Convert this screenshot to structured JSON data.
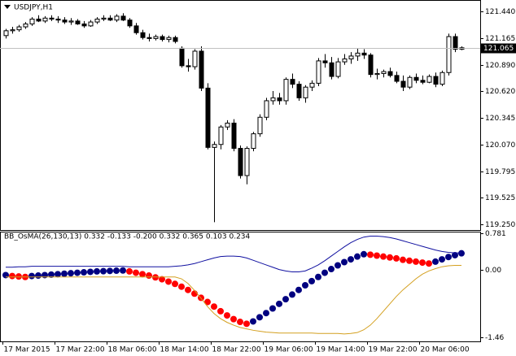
{
  "chart_data": [
    {
      "type": "candlestick",
      "title": "USDJPY,H1",
      "up_color": "#ffffff",
      "down_color": "#000000",
      "edge_color": "#000000",
      "xlim": [
        -0.875,
        72.875
      ],
      "ylim": [
        119.19,
        121.548
      ],
      "yticks": [
        {
          "value": 121.44,
          "label": "121.440"
        },
        121.165,
        {
          "value": 120.89,
          "label": "120.890"
        },
        {
          "value": 120.62,
          "label": "120.620"
        },
        120.345,
        {
          "value": 120.07,
          "label": "120.070"
        },
        119.795,
        119.525,
        {
          "value": 119.25,
          "label": "119.250"
        }
      ],
      "last_price": 121.065,
      "ohlc": [
        [
          121.19,
          121.26,
          121.16,
          121.24
        ],
        [
          121.24,
          121.28,
          121.21,
          121.25
        ],
        [
          121.25,
          121.3,
          121.23,
          121.28
        ],
        [
          121.28,
          121.33,
          121.26,
          121.31
        ],
        [
          121.31,
          121.38,
          121.29,
          121.36
        ],
        [
          121.36,
          121.4,
          121.33,
          121.34
        ],
        [
          121.34,
          121.39,
          121.32,
          121.37
        ],
        [
          121.37,
          121.4,
          121.34,
          121.36
        ],
        [
          121.36,
          121.39,
          121.32,
          121.35
        ],
        [
          121.35,
          121.38,
          121.31,
          121.33
        ],
        [
          121.33,
          121.37,
          121.3,
          121.34
        ],
        [
          121.34,
          121.36,
          121.3,
          121.31
        ],
        [
          121.31,
          121.34,
          121.27,
          121.29
        ],
        [
          121.29,
          121.35,
          121.28,
          121.33
        ],
        [
          121.33,
          121.38,
          121.31,
          121.36
        ],
        [
          121.36,
          121.4,
          121.34,
          121.37
        ],
        [
          121.37,
          121.4,
          121.34,
          121.35
        ],
        [
          121.35,
          121.41,
          121.33,
          121.39
        ],
        [
          121.39,
          121.42,
          121.34,
          121.35
        ],
        [
          121.35,
          121.37,
          121.27,
          121.29
        ],
        [
          121.29,
          121.32,
          121.2,
          121.22
        ],
        [
          121.22,
          121.25,
          121.15,
          121.17
        ],
        [
          121.17,
          121.21,
          121.13,
          121.16
        ],
        [
          121.16,
          121.2,
          121.14,
          121.18
        ],
        [
          121.18,
          121.2,
          121.13,
          121.15
        ],
        [
          121.15,
          121.19,
          121.12,
          121.17
        ],
        [
          121.17,
          121.19,
          121.11,
          121.13
        ],
        [
          121.06,
          121.08,
          120.86,
          120.88
        ],
        [
          120.88,
          120.95,
          120.82,
          120.87
        ],
        [
          120.87,
          121.05,
          120.84,
          121.03
        ],
        [
          121.03,
          121.08,
          120.62,
          120.65
        ],
        [
          120.65,
          120.7,
          120.02,
          120.04
        ],
        [
          120.04,
          120.1,
          119.27,
          120.07
        ],
        [
          120.07,
          120.27,
          120.02,
          120.25
        ],
        [
          120.25,
          120.32,
          120.22,
          120.29
        ],
        [
          120.29,
          120.33,
          120.0,
          120.03
        ],
        [
          120.03,
          120.06,
          119.72,
          119.75
        ],
        [
          119.75,
          120.05,
          119.66,
          120.03
        ],
        [
          120.03,
          120.2,
          120.0,
          120.18
        ],
        [
          120.18,
          120.38,
          120.15,
          120.35
        ],
        [
          120.35,
          120.55,
          120.32,
          120.52
        ],
        [
          120.52,
          120.62,
          120.48,
          120.55
        ],
        [
          120.55,
          120.6,
          120.48,
          120.52
        ],
        [
          120.52,
          120.76,
          120.48,
          120.74
        ],
        [
          120.74,
          120.8,
          120.65,
          120.69
        ],
        [
          120.69,
          120.72,
          120.52,
          120.55
        ],
        [
          120.55,
          120.68,
          120.5,
          120.66
        ],
        [
          120.66,
          120.73,
          120.62,
          120.7
        ],
        [
          120.7,
          120.96,
          120.67,
          120.93
        ],
        [
          120.93,
          121.0,
          120.86,
          120.91
        ],
        [
          120.91,
          120.97,
          120.74,
          120.77
        ],
        [
          120.77,
          120.96,
          120.75,
          120.92
        ],
        [
          120.92,
          121.0,
          120.89,
          120.95
        ],
        [
          120.95,
          121.02,
          120.9,
          120.98
        ],
        [
          120.98,
          121.06,
          120.93,
          121.01
        ],
        [
          121.01,
          121.05,
          120.95,
          120.99
        ],
        [
          120.99,
          121.01,
          120.76,
          120.79
        ],
        [
          120.79,
          120.85,
          120.74,
          120.8
        ],
        [
          120.8,
          120.84,
          120.76,
          120.82
        ],
        [
          120.82,
          120.86,
          120.76,
          120.78
        ],
        [
          120.78,
          120.82,
          120.7,
          120.72
        ],
        [
          120.72,
          120.78,
          120.62,
          120.66
        ],
        [
          120.66,
          120.78,
          120.64,
          120.76
        ],
        [
          120.76,
          120.8,
          120.7,
          120.73
        ],
        [
          120.73,
          120.78,
          120.69,
          120.71
        ],
        [
          120.71,
          120.79,
          120.7,
          120.77
        ],
        [
          120.77,
          120.81,
          120.66,
          120.69
        ],
        [
          120.69,
          120.83,
          120.67,
          120.81
        ],
        [
          120.81,
          121.21,
          120.78,
          121.18
        ],
        [
          121.18,
          121.21,
          121.02,
          121.05
        ],
        [
          121.05,
          121.08,
          121.04,
          121.065
        ]
      ]
    },
    {
      "type": "line",
      "title": "BB_OsMA(26,130,13) 0.332 -0.133 -0.200 0.332 0.365 0.103 0.234",
      "xlim": [
        -0.875,
        72.875
      ],
      "ylim": [
        -1.55,
        0.8
      ],
      "yticks": [
        0.781,
        {
          "value": 0,
          "label": "0.00"
        },
        -1.46
      ],
      "xticks": [
        {
          "value": 0,
          "label": "17 Mar 2015"
        },
        {
          "value": 8,
          "label": "17 Mar 22:00"
        },
        {
          "value": 16,
          "label": "18 Mar 06:00"
        },
        {
          "value": 24,
          "label": "18 Mar 14:00"
        },
        {
          "value": 32,
          "label": "18 Mar 22:00"
        },
        {
          "value": 40,
          "label": "19 Mar 06:00"
        },
        {
          "value": 48,
          "label": "19 Mar 14:00"
        },
        {
          "value": 56,
          "label": "19 Mar 22:00"
        },
        {
          "value": 64,
          "label": "20 Mar 06:00"
        }
      ],
      "series": [
        {
          "style": "dots",
          "up_color": "#000080",
          "down_color": "#ff0000",
          "values": [
            -0.12,
            -0.14,
            -0.15,
            -0.16,
            -0.14,
            -0.13,
            -0.12,
            -0.11,
            -0.1,
            -0.09,
            -0.08,
            -0.07,
            -0.06,
            -0.05,
            -0.04,
            -0.035,
            -0.03,
            -0.025,
            -0.02,
            -0.04,
            -0.07,
            -0.1,
            -0.13,
            -0.17,
            -0.21,
            -0.26,
            -0.31,
            -0.37,
            -0.44,
            -0.52,
            -0.61,
            -0.7,
            -0.8,
            -0.9,
            -0.99,
            -1.07,
            -1.13,
            -1.17,
            -1.12,
            -1.03,
            -0.94,
            -0.84,
            -0.74,
            -0.64,
            -0.54,
            -0.44,
            -0.34,
            -0.25,
            -0.16,
            -0.07,
            0.01,
            0.09,
            0.16,
            0.22,
            0.28,
            0.33,
            0.32,
            0.3,
            0.28,
            0.26,
            0.24,
            0.21,
            0.19,
            0.17,
            0.15,
            0.13,
            0.17,
            0.22,
            0.27,
            0.31,
            0.35
          ]
        },
        {
          "style": "line",
          "color": "#1010a0",
          "values": [
            0.05,
            0.05,
            0.06,
            0.06,
            0.07,
            0.07,
            0.07,
            0.07,
            0.07,
            0.07,
            0.07,
            0.07,
            0.07,
            0.07,
            0.07,
            0.07,
            0.07,
            0.07,
            0.07,
            0.06,
            0.06,
            0.06,
            0.06,
            0.06,
            0.06,
            0.06,
            0.07,
            0.08,
            0.1,
            0.13,
            0.17,
            0.21,
            0.25,
            0.28,
            0.29,
            0.29,
            0.28,
            0.25,
            0.2,
            0.15,
            0.1,
            0.05,
            0.0,
            -0.03,
            -0.05,
            -0.05,
            -0.03,
            0.03,
            0.1,
            0.19,
            0.29,
            0.39,
            0.49,
            0.58,
            0.65,
            0.7,
            0.72,
            0.72,
            0.71,
            0.69,
            0.66,
            0.62,
            0.58,
            0.54,
            0.5,
            0.46,
            0.42,
            0.39,
            0.37,
            0.36,
            0.36
          ]
        },
        {
          "style": "line",
          "color": "#d4a020",
          "values": [
            -0.16,
            -0.16,
            -0.16,
            -0.16,
            -0.16,
            -0.16,
            -0.16,
            -0.16,
            -0.16,
            -0.16,
            -0.16,
            -0.16,
            -0.16,
            -0.16,
            -0.16,
            -0.16,
            -0.16,
            -0.16,
            -0.16,
            -0.16,
            -0.16,
            -0.16,
            -0.16,
            -0.16,
            -0.16,
            -0.16,
            -0.16,
            -0.2,
            -0.3,
            -0.45,
            -0.62,
            -0.8,
            -0.95,
            -1.06,
            -1.14,
            -1.2,
            -1.25,
            -1.28,
            -1.31,
            -1.33,
            -1.35,
            -1.36,
            -1.37,
            -1.37,
            -1.37,
            -1.37,
            -1.37,
            -1.37,
            -1.38,
            -1.38,
            -1.38,
            -1.38,
            -1.39,
            -1.38,
            -1.36,
            -1.3,
            -1.2,
            -1.06,
            -0.9,
            -0.74,
            -0.58,
            -0.44,
            -0.32,
            -0.2,
            -0.1,
            -0.03,
            0.02,
            0.06,
            0.08,
            0.09,
            0.09
          ]
        }
      ]
    }
  ]
}
